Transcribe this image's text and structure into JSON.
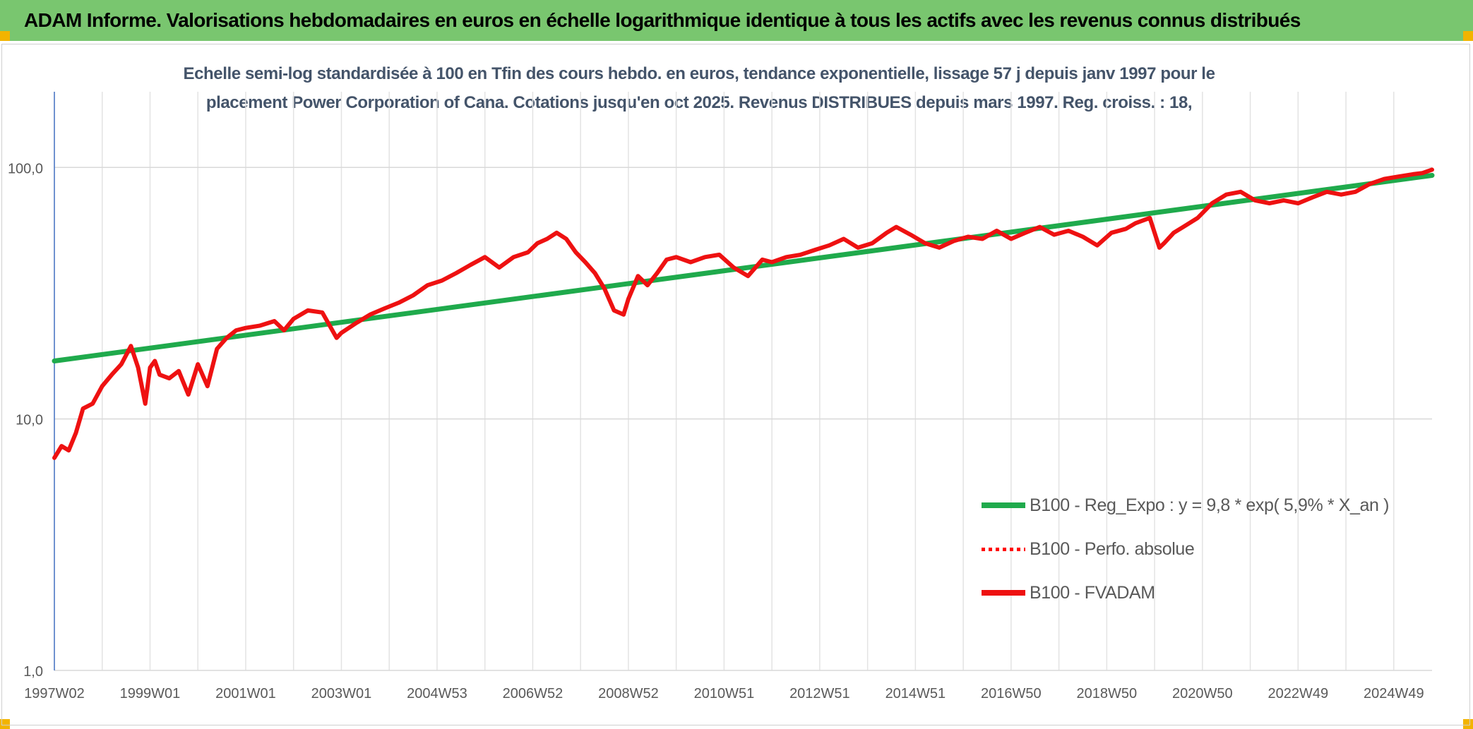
{
  "banner": {
    "title": "ADAM Informe. Valorisations hebdomadaires en euros en échelle logarithmique identique à tous les actifs avec les revenus connus distribués",
    "background": "#79c66f"
  },
  "chart_data": {
    "type": "line",
    "title_lines": [
      "Echelle semi-log standardisée à 100 en Tfin des cours hebdo. en euros, tendance exponentielle, lissage 57 j depuis janv 1997 pour le",
      "placement Power Corporation of Cana. Cotations jusqu'en oct 2025. Revenus DISTRIBUES depuis mars 1997. Reg. croiss. : 18,"
    ],
    "y_scale": "log",
    "ylim": [
      1,
      200
    ],
    "y_ticks": [
      1,
      10,
      100
    ],
    "y_tick_labels": [
      "1,0",
      "10,0",
      "100,0"
    ],
    "xlim": [
      1997.0,
      2025.8
    ],
    "x_ticks": [
      1997.0,
      1999.0,
      2001.0,
      2003.0,
      2005.0,
      2007.0,
      2009.0,
      2011.0,
      2013.0,
      2015.0,
      2017.0,
      2019.0,
      2021.0,
      2023.0,
      2025.0
    ],
    "x_tick_labels": [
      "1997W02",
      "1999W01",
      "2001W01",
      "2003W01",
      "2004W53",
      "2006W52",
      "2008W52",
      "2010W51",
      "2012W51",
      "2014W51",
      "2016W50",
      "2018W50",
      "2020W50",
      "2022W49",
      "2024W49"
    ],
    "grid": true,
    "legend_position": "bottom-right",
    "series": [
      {
        "name": "B100 - Reg_Expo : y = 9,8 * exp( 5,9% *  X_an )",
        "color": "#1faa4c",
        "style": "solid",
        "x": [
          1997.0,
          2025.8
        ],
        "y": [
          17.0,
          93.0
        ]
      },
      {
        "name": "B100 - Perfo. absolue",
        "color": "#ff0000",
        "style": "dotted",
        "x": [],
        "y": []
      },
      {
        "name": "B100 - FVADAM",
        "color": "#ee1111",
        "style": "solid",
        "x": [
          1997.0,
          1997.15,
          1997.3,
          1997.45,
          1997.6,
          1997.8,
          1998.0,
          1998.2,
          1998.4,
          1998.6,
          1998.75,
          1998.9,
          1999.0,
          1999.1,
          1999.2,
          1999.4,
          1999.6,
          1999.8,
          2000.0,
          2000.2,
          2000.4,
          2000.6,
          2000.8,
          2001.0,
          2001.3,
          2001.6,
          2001.8,
          2002.0,
          2002.3,
          2002.6,
          2002.9,
          2003.0,
          2003.3,
          2003.6,
          2003.9,
          2004.2,
          2004.5,
          2004.8,
          2005.1,
          2005.4,
          2005.7,
          2006.0,
          2006.3,
          2006.6,
          2006.9,
          2007.1,
          2007.3,
          2007.5,
          2007.7,
          2007.9,
          2008.1,
          2008.3,
          2008.5,
          2008.7,
          2008.9,
          2009.0,
          2009.2,
          2009.4,
          2009.6,
          2009.8,
          2010.0,
          2010.3,
          2010.6,
          2010.9,
          2011.2,
          2011.5,
          2011.8,
          2012.0,
          2012.3,
          2012.6,
          2012.9,
          2013.2,
          2013.5,
          2013.8,
          2014.1,
          2014.4,
          2014.6,
          2014.9,
          2015.2,
          2015.5,
          2015.8,
          2016.1,
          2016.4,
          2016.7,
          2017.0,
          2017.3,
          2017.6,
          2017.9,
          2018.2,
          2018.5,
          2018.8,
          2019.1,
          2019.4,
          2019.6,
          2019.9,
          2020.1,
          2020.2,
          2020.4,
          2020.6,
          2020.9,
          2021.2,
          2021.5,
          2021.8,
          2022.1,
          2022.4,
          2022.7,
          2023.0,
          2023.3,
          2023.6,
          2023.9,
          2024.2,
          2024.5,
          2024.8,
          2025.1,
          2025.4,
          2025.6,
          2025.8
        ],
        "y": [
          7.0,
          7.8,
          7.5,
          8.8,
          11.0,
          11.5,
          13.5,
          15.0,
          16.5,
          19.5,
          16.0,
          11.5,
          16.0,
          17.0,
          15.0,
          14.5,
          15.5,
          12.5,
          16.5,
          13.5,
          19.0,
          21.0,
          22.5,
          23.0,
          23.5,
          24.5,
          22.5,
          25.0,
          27.0,
          26.5,
          21.0,
          22.0,
          24.0,
          26.0,
          27.5,
          29.0,
          31.0,
          34.0,
          35.5,
          38.0,
          41.0,
          44.0,
          40.0,
          44.0,
          46.0,
          50.0,
          52.0,
          55.0,
          52.0,
          46.0,
          42.0,
          38.0,
          33.0,
          27.0,
          26.0,
          30.0,
          37.0,
          34.0,
          38.0,
          43.0,
          44.0,
          42.0,
          44.0,
          45.0,
          40.0,
          37.0,
          43.0,
          42.0,
          44.0,
          45.0,
          47.0,
          49.0,
          52.0,
          48.0,
          50.0,
          55.0,
          58.0,
          54.0,
          50.0,
          48.0,
          51.0,
          53.0,
          52.0,
          56.0,
          52.0,
          55.0,
          58.0,
          54.0,
          56.0,
          53.0,
          49.0,
          55.0,
          57.0,
          60.0,
          63.0,
          48.0,
          50.0,
          55.0,
          58.0,
          63.0,
          72.0,
          78.0,
          80.0,
          74.0,
          72.0,
          74.0,
          72.0,
          76.0,
          80.0,
          78.0,
          80.0,
          86.0,
          90.0,
          92.0,
          94.0,
          95.0,
          98.0
        ]
      }
    ]
  }
}
